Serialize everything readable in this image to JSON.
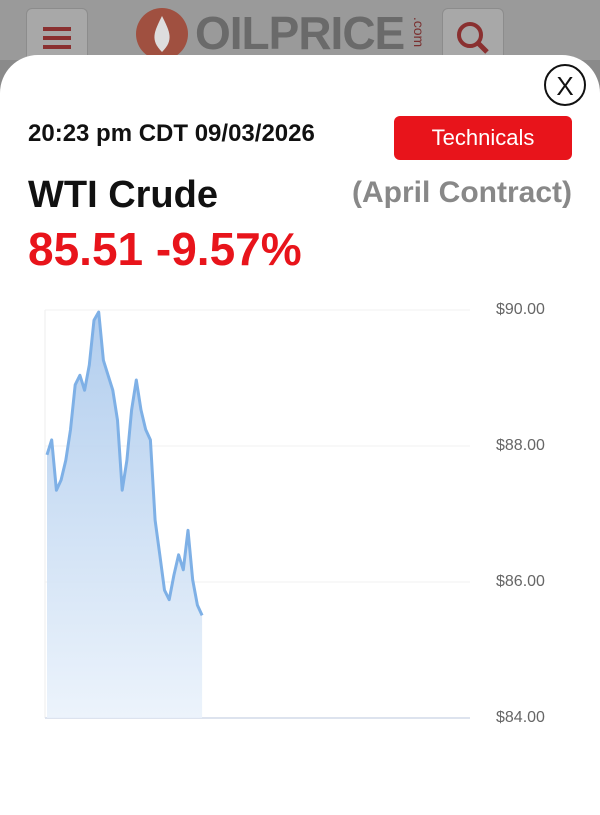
{
  "header": {
    "logo": "OILPRICE",
    "logo_suffix": ".com"
  },
  "modal": {
    "close": "X",
    "timestamp": "20:23 pm CDT 09/03/2026",
    "button": "Technicals",
    "instrument": "WTI Crude",
    "contract": "(April Contract)",
    "price": "85.51",
    "change": "-9.57%"
  },
  "chart_data": {
    "type": "line",
    "values": [
      87.87,
      88.09,
      87.35,
      87.5,
      87.79,
      88.24,
      88.9,
      89.04,
      88.82,
      89.19,
      89.85,
      89.97,
      89.26,
      89.04,
      88.82,
      88.38,
      87.35,
      87.79,
      88.53,
      88.97,
      88.53,
      88.24,
      88.09,
      86.91,
      86.4,
      85.88,
      85.74,
      86.1,
      86.4,
      86.18,
      86.76,
      86.03,
      85.66,
      85.51,
      null,
      null,
      null,
      null,
      null,
      null,
      null,
      null,
      null,
      null,
      null,
      null,
      null,
      null,
      null,
      null,
      null,
      null,
      null,
      null,
      null,
      null,
      null,
      null,
      null,
      null,
      null,
      null,
      null,
      null,
      null,
      null,
      null,
      null,
      null,
      null,
      null,
      null,
      null,
      null,
      null,
      null,
      null,
      null,
      null,
      null,
      null,
      null,
      null,
      null,
      null,
      null,
      null,
      null,
      null,
      null,
      null
    ],
    "color": "#7eb0e6",
    "ylim": [
      84,
      90
    ],
    "yticks": [
      {
        "value": 84,
        "label": "$84.00"
      },
      {
        "value": 86,
        "label": "$86.00"
      },
      {
        "value": 88,
        "label": "$88.00"
      },
      {
        "value": 90,
        "label": "$90.00"
      }
    ],
    "grid": true
  }
}
